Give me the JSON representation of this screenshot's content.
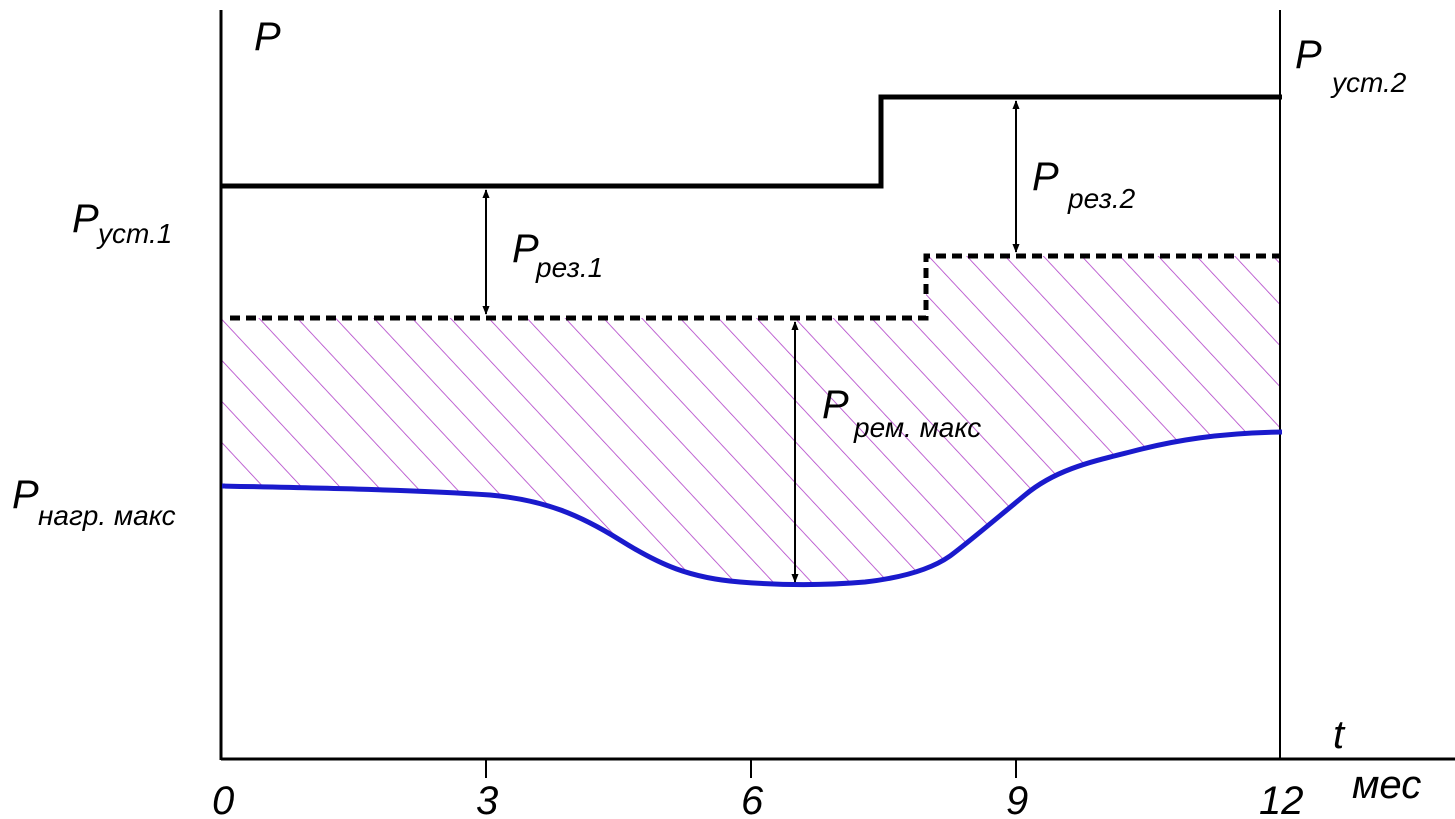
{
  "axes": {
    "y_label": "P",
    "x_label": "t",
    "x_unit": "мес",
    "x_ticks": [
      "0",
      "3",
      "6",
      "9",
      "12"
    ]
  },
  "labels": {
    "p_ust1": {
      "main": "P",
      "sub": "уст.1"
    },
    "p_ust2": {
      "main": "P",
      "sub": "уст.2"
    },
    "p_rez1": {
      "main": "P",
      "sub": "рез.1"
    },
    "p_rez2": {
      "main": "P",
      "sub": "рез.2"
    },
    "p_rem": {
      "main": "P",
      "sub": "рем. макс"
    },
    "p_nagr": {
      "main": "P",
      "sub": "нагр. макс"
    }
  },
  "colors": {
    "axis": "#000000",
    "installed_capacity": "#000000",
    "available_capacity": "#000000",
    "load_curve": "#1a1acc",
    "hatch": "#b040c8"
  }
}
